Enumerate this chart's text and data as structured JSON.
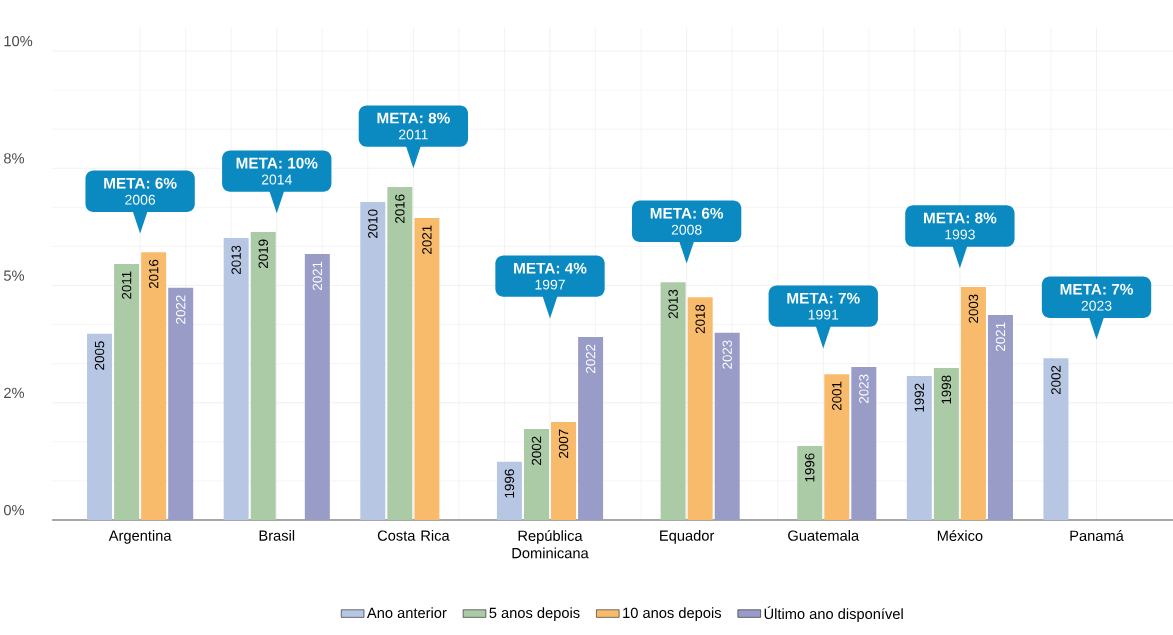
{
  "chart_data": {
    "type": "bar",
    "categories": [
      "Argentina",
      "Brasil",
      "Costa Rica",
      "República Dominicana",
      "Equador",
      "Guatemala",
      "México",
      "Panamá"
    ],
    "series": [
      {
        "name": "Ano anterior",
        "color": "#b6c6e3",
        "values": [
          3.97,
          6.01,
          6.78,
          1.24,
          null,
          null,
          3.07,
          3.45
        ]
      },
      {
        "name": "5 anos depois",
        "color": "#abcba6",
        "values": [
          5.46,
          6.14,
          7.1,
          1.94,
          5.07,
          1.58,
          3.24,
          null
        ]
      },
      {
        "name": "10 anos depois",
        "color": "#f8bb6b",
        "values": [
          5.71,
          null,
          6.44,
          2.09,
          4.75,
          3.11,
          4.97,
          null
        ]
      },
      {
        "name": "Último ano disponível",
        "color": "#9a9cc8",
        "values": [
          4.95,
          5.67,
          null,
          3.9,
          3.99,
          3.26,
          4.37,
          null
        ]
      }
    ],
    "ylim": [
      0,
      10.5
    ],
    "yticks": [
      {
        "value": 0,
        "label": "0%"
      },
      {
        "value": 2.5,
        "label": "2%"
      },
      {
        "value": 5,
        "label": "5%"
      },
      {
        "value": 7.5,
        "label": "8%"
      },
      {
        "value": 10,
        "label": "10%"
      }
    ],
    "grid": true,
    "legend": "bottom",
    "annotations": [
      "META: 6%",
      "2006",
      "META: 10%",
      "2014",
      "META: 8%",
      "2011",
      "META: 4%",
      "1997",
      "META: 6%",
      "2008",
      "META: 7%",
      "1991",
      "META: 8%",
      "1993",
      "META: 7%",
      "2023",
      "2005",
      "2011",
      "2016",
      "2022",
      "2013",
      "2019",
      "2021",
      "2010",
      "2016",
      "2021",
      "1996",
      "2002",
      "2007",
      "2022",
      "2013",
      "2018",
      "2023",
      "1996",
      "2001",
      "2023",
      "1992",
      "1998",
      "2003",
      "2021",
      "2002"
    ]
  }
}
